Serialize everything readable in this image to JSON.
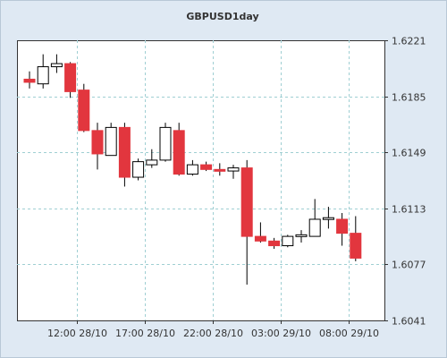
{
  "chart_data": {
    "type": "candlestick",
    "title": "GBPUSD1day",
    "y_ticks": [
      "1.6221",
      "1.6185",
      "1.6149",
      "1.6113",
      "1.6077",
      "1.6041"
    ],
    "x_ticks": [
      "12:00 28/10",
      "17:00 28/10",
      "22:00 28/10",
      "03:00 29/10",
      "08:00 29/10"
    ],
    "ylim": [
      1.6041,
      1.6221
    ],
    "grid": true,
    "up_color": "#ffffff",
    "down_color": "#e2363e",
    "candles": [
      {
        "x": 0,
        "open": 1.6196,
        "high": 1.6201,
        "low": 1.619,
        "close": 1.6194
      },
      {
        "x": 1,
        "open": 1.6193,
        "high": 1.6212,
        "low": 1.619,
        "close": 1.6204
      },
      {
        "x": 2,
        "open": 1.6204,
        "high": 1.6212,
        "low": 1.62,
        "close": 1.6206
      },
      {
        "x": 3,
        "open": 1.6206,
        "high": 1.6207,
        "low": 1.6184,
        "close": 1.6188
      },
      {
        "x": 4,
        "open": 1.6189,
        "high": 1.6193,
        "low": 1.6162,
        "close": 1.6163
      },
      {
        "x": 5,
        "open": 1.6163,
        "high": 1.6168,
        "low": 1.6138,
        "close": 1.6148
      },
      {
        "x": 6,
        "open": 1.6147,
        "high": 1.6168,
        "low": 1.6147,
        "close": 1.6165
      },
      {
        "x": 7,
        "open": 1.6165,
        "high": 1.6168,
        "low": 1.6127,
        "close": 1.6133
      },
      {
        "x": 8,
        "open": 1.6133,
        "high": 1.6145,
        "low": 1.6131,
        "close": 1.6143
      },
      {
        "x": 9,
        "open": 1.6141,
        "high": 1.6151,
        "low": 1.6139,
        "close": 1.6144
      },
      {
        "x": 10,
        "open": 1.6144,
        "high": 1.6168,
        "low": 1.6143,
        "close": 1.6165
      },
      {
        "x": 11,
        "open": 1.6163,
        "high": 1.6168,
        "low": 1.6134,
        "close": 1.6135
      },
      {
        "x": 12,
        "open": 1.6135,
        "high": 1.6144,
        "low": 1.6134,
        "close": 1.6141
      },
      {
        "x": 13,
        "open": 1.6141,
        "high": 1.6143,
        "low": 1.6137,
        "close": 1.6138
      },
      {
        "x": 14,
        "open": 1.6138,
        "high": 1.6142,
        "low": 1.6134,
        "close": 1.6137
      },
      {
        "x": 15,
        "open": 1.6137,
        "high": 1.6141,
        "low": 1.6132,
        "close": 1.6139
      },
      {
        "x": 16,
        "open": 1.6139,
        "high": 1.6144,
        "low": 1.6064,
        "close": 1.6095
      },
      {
        "x": 17,
        "open": 1.6095,
        "high": 1.6104,
        "low": 1.6091,
        "close": 1.6092
      },
      {
        "x": 18,
        "open": 1.6092,
        "high": 1.6094,
        "low": 1.6087,
        "close": 1.6089
      },
      {
        "x": 19,
        "open": 1.6089,
        "high": 1.6096,
        "low": 1.6088,
        "close": 1.6095
      },
      {
        "x": 20,
        "open": 1.6095,
        "high": 1.6099,
        "low": 1.6091,
        "close": 1.6096
      },
      {
        "x": 21,
        "open": 1.6095,
        "high": 1.6119,
        "low": 1.6095,
        "close": 1.6106
      },
      {
        "x": 22,
        "open": 1.6106,
        "high": 1.6114,
        "low": 1.61,
        "close": 1.6107
      },
      {
        "x": 23,
        "open": 1.6106,
        "high": 1.611,
        "low": 1.6089,
        "close": 1.6097
      },
      {
        "x": 24,
        "open": 1.6097,
        "high": 1.6108,
        "low": 1.6079,
        "close": 1.6081
      }
    ],
    "x_tick_positions": [
      3.5,
      8.5,
      13.5,
      18.5,
      23.5
    ]
  }
}
